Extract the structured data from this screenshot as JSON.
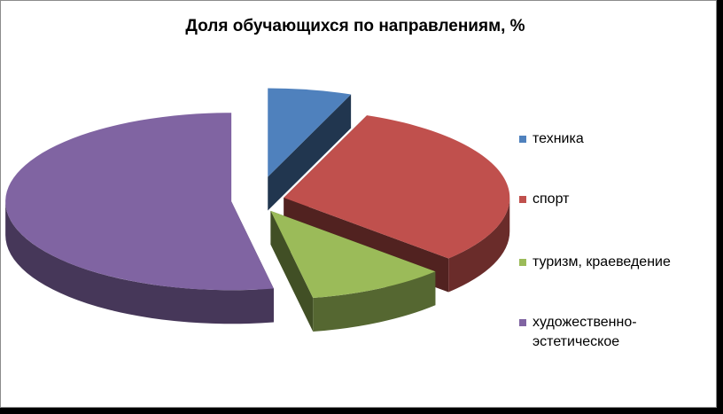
{
  "chart_data": {
    "type": "pie",
    "title": "Доля  обучающихся по направлениям, %",
    "categories": [
      "техника",
      "спорт",
      "туризм, краеведение",
      "художественно-эстетическое"
    ],
    "values": [
      6,
      31,
      10,
      53
    ],
    "colors": [
      "#4F81BD",
      "#C0504D",
      "#9BBB59",
      "#8064A2"
    ],
    "exploded": true,
    "three_d": true,
    "legend_position": "right"
  }
}
